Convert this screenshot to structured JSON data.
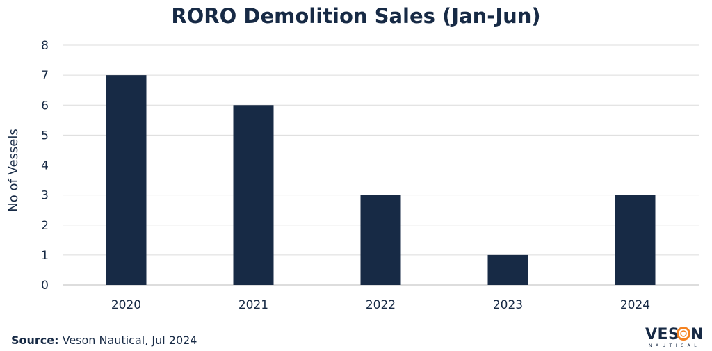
{
  "chart_data": {
    "type": "bar",
    "title": "RORO Demolition Sales (Jan-Jun)",
    "xlabel": "",
    "ylabel": "No of Vessels",
    "categories": [
      "2020",
      "2021",
      "2022",
      "2023",
      "2024"
    ],
    "values": [
      7,
      6,
      3,
      1,
      3
    ],
    "ylim": [
      0,
      8
    ],
    "yticks": [
      "0",
      "1",
      "2",
      "3",
      "4",
      "5",
      "6",
      "7",
      "8"
    ],
    "grid": true,
    "bar_color": "#172a45"
  },
  "source": {
    "label": "Source:",
    "text": "Veson Nautical, Jul 2024"
  },
  "logo": {
    "name": "VESON",
    "sub": "NAUTICAL",
    "accent": "#f58220"
  }
}
